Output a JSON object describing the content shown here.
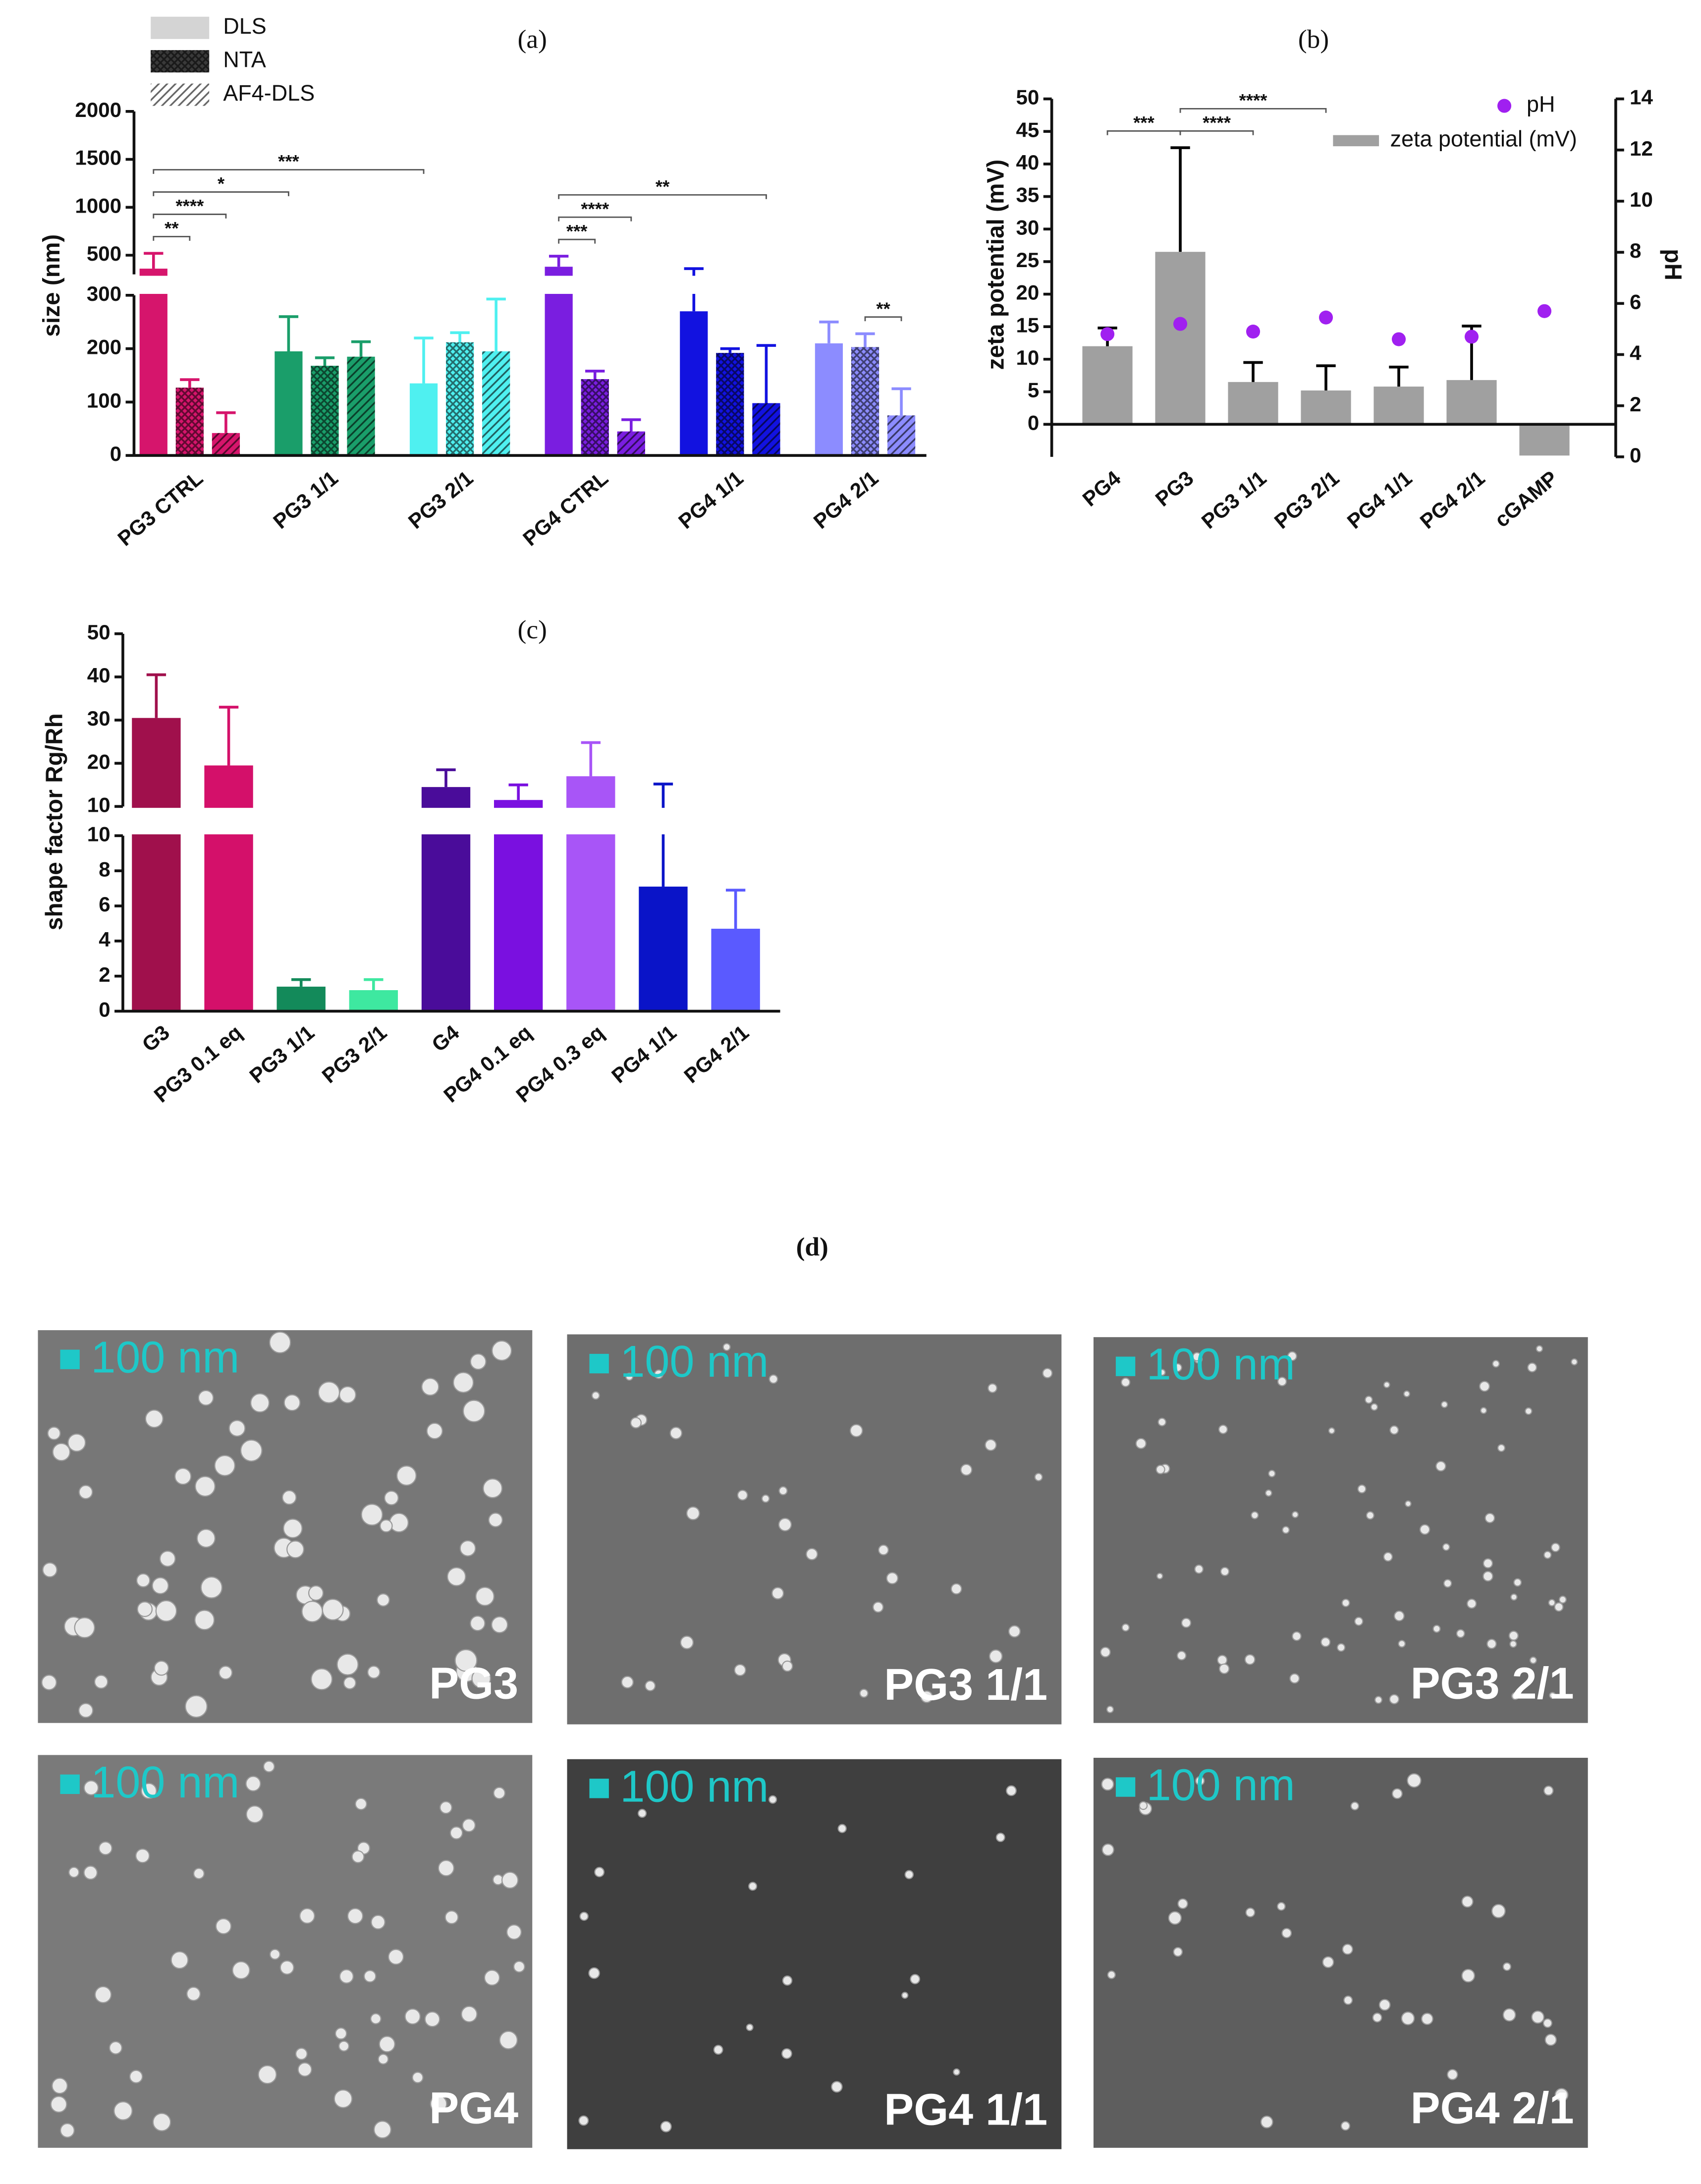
{
  "chart_data": [
    {
      "type": "bar",
      "panel_label": "(a)",
      "ylabel": "size (nm)",
      "categories": [
        "PG3 CTRL",
        "PG3 1/1",
        "PG3 2/1",
        "PG4 CTRL",
        "PG4 1/1",
        "PG4 2/1"
      ],
      "category_colors": [
        "#d6156c",
        "#1a9e6a",
        "#4ff0f0",
        "#7a1ee0",
        "#1212e0",
        "#8c8cff"
      ],
      "series": [
        {
          "name": "DLS",
          "color": "#d4d4d4",
          "pattern": "solid",
          "values": [
            360,
            195,
            135,
            380,
            270,
            210
          ],
          "errors": [
            160,
            65,
            85,
            110,
            90,
            40
          ]
        },
        {
          "name": "NTA",
          "color": "#3a3a3a",
          "pattern": "crosshatch",
          "values": [
            127,
            168,
            212,
            143,
            192,
            203
          ],
          "errors": [
            15,
            15,
            18,
            15,
            8,
            25
          ]
        },
        {
          "name": "AF4-DLS",
          "color": "#ffffff",
          "pattern": "diagonal",
          "values": [
            42,
            185,
            195,
            45,
            98,
            75
          ],
          "errors": [
            38,
            28,
            98,
            22,
            108,
            50
          ]
        }
      ],
      "ylim_segments": [
        [
          0,
          300
        ],
        [
          300,
          2000
        ]
      ],
      "yticks_segments": [
        [
          0,
          100,
          200,
          300
        ],
        [
          500,
          1000,
          1500,
          2000
        ]
      ],
      "legend": "upper left",
      "brackets": [
        {
          "label": "**",
          "from": [
            0,
            0
          ],
          "to": [
            0,
            1
          ]
        },
        {
          "label": "****",
          "from": [
            0,
            0
          ],
          "to": [
            0,
            2
          ]
        },
        {
          "label": "*",
          "from": [
            0,
            0
          ],
          "to": [
            1,
            0
          ]
        },
        {
          "label": "***",
          "from": [
            0,
            0
          ],
          "to": [
            2,
            0
          ]
        },
        {
          "label": "***",
          "from": [
            3,
            0
          ],
          "to": [
            3,
            1
          ]
        },
        {
          "label": "****",
          "from": [
            3,
            0
          ],
          "to": [
            3,
            2
          ]
        },
        {
          "label": "**",
          "from": [
            3,
            0
          ],
          "to": [
            4,
            2
          ]
        },
        {
          "label": "**",
          "from": [
            5,
            1
          ],
          "to": [
            5,
            2
          ]
        }
      ]
    },
    {
      "type": "bar",
      "panel_label": "(b)",
      "ylabel": "zeta potential (mV)",
      "y2label": "pH",
      "categories": [
        "PG4",
        "PG3",
        "PG3 1/1",
        "PG3 2/1",
        "PG4 1/1",
        "PG4 2/1",
        "cGAMP"
      ],
      "series": [
        {
          "name": "zeta potential (mV)",
          "color": "#a0a0a0",
          "values": [
            12,
            26.5,
            6.5,
            5.2,
            5.8,
            6.8,
            -4.8
          ],
          "errors": [
            2.8,
            16,
            3,
            3.8,
            3,
            8.3,
            null
          ]
        },
        {
          "name": "pH",
          "type": "scatter",
          "axis": "y2",
          "color": "#a020f0",
          "values": [
            4.8,
            5.2,
            4.9,
            5.45,
            4.6,
            4.7,
            5.7
          ]
        }
      ],
      "error_color": "#000000",
      "ylim_segments": [
        [
          -5,
          50
        ]
      ],
      "yticks_segments": [
        [
          0,
          5,
          10,
          15,
          20,
          25,
          30,
          35,
          40,
          45,
          50
        ]
      ],
      "y2lim": [
        0,
        14
      ],
      "y2ticks": [
        0,
        2,
        4,
        6,
        8,
        10,
        12,
        14
      ],
      "legend": "upper right",
      "brackets": [
        {
          "label": "****",
          "from": [
            1,
            0
          ],
          "to": [
            2,
            0
          ]
        },
        {
          "label": "****",
          "from": [
            1,
            0
          ],
          "to": [
            3,
            0
          ]
        },
        {
          "label": "***",
          "from": [
            0,
            0
          ],
          "to": [
            1,
            0
          ]
        }
      ]
    },
    {
      "type": "bar",
      "panel_label": "(c)",
      "ylabel": "shape factor Rg/Rh",
      "categories": [
        "G3",
        "PG3 0.1 eq",
        "PG3 1/1",
        "PG3 2/1",
        "G4",
        "PG4 0.1 eq",
        "PG4 0.3 eq",
        "PG4 1/1",
        "PG4 2/1"
      ],
      "category_colors": [
        "#a0104c",
        "#d4106a",
        "#138a5a",
        "#3ee8a0",
        "#4a0c9a",
        "#7a10e0",
        "#a855f7",
        "#0a14c8",
        "#5a5aff"
      ],
      "series": [
        {
          "name": "shape factor",
          "values": [
            30.5,
            19.5,
            1.4,
            1.2,
            14.5,
            11.5,
            17,
            7.1,
            4.7
          ],
          "errors": [
            10,
            13.5,
            0.4,
            0.6,
            4,
            3.5,
            7.8,
            8.1,
            2.2
          ]
        }
      ],
      "ylim_segments": [
        [
          0,
          10
        ],
        [
          10,
          50
        ]
      ],
      "yticks_segments": [
        [
          0,
          2,
          4,
          6,
          8,
          10
        ],
        [
          10,
          20,
          30,
          40,
          50
        ]
      ]
    }
  ],
  "images": {
    "panel_label": "(d)",
    "items": [
      {
        "scale_label": "100 nm",
        "name": "PG3"
      },
      {
        "scale_label": "100 nm",
        "name": "PG3 1/1"
      },
      {
        "scale_label": "100 nm",
        "name": "PG3 2/1"
      },
      {
        "scale_label": "100 nm",
        "name": "PG4"
      },
      {
        "scale_label": "100 nm",
        "name": "PG4 1/1"
      },
      {
        "scale_label": "100 nm",
        "name": "PG4 2/1"
      }
    ]
  }
}
